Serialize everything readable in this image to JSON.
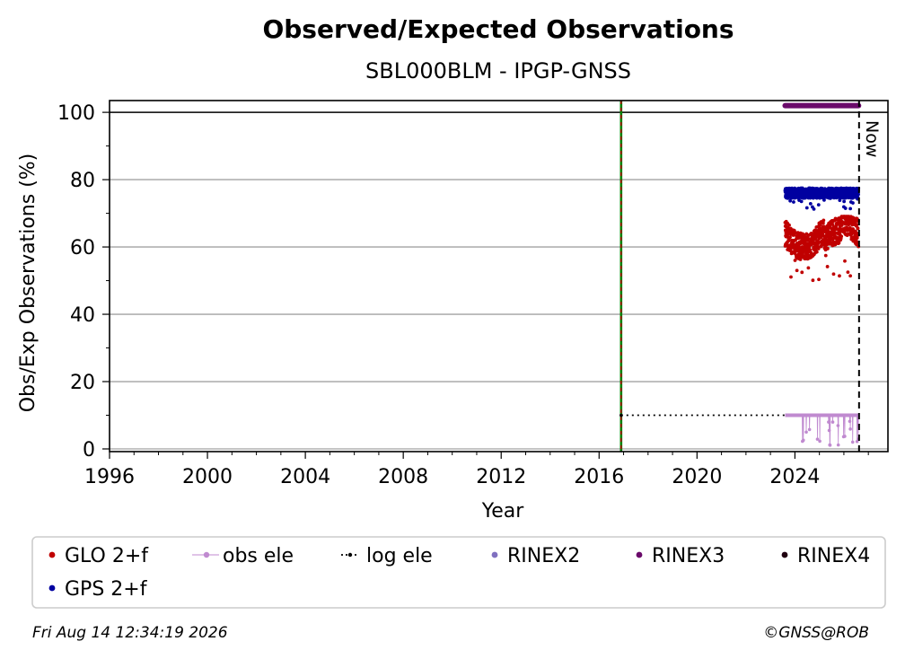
{
  "chart_data": {
    "type": "scatter",
    "title": "Observed/Expected Observations",
    "subtitle": "SBL000BLM - IPGP-GNSS",
    "xlabel": "Year",
    "ylabel": "Obs/Exp Observations (%)",
    "xlim": [
      1996,
      2027.8
    ],
    "ylim": [
      -0.8,
      103.5
    ],
    "x_ticks": [
      "1996",
      "2000",
      "2004",
      "2008",
      "2012",
      "2016",
      "2020",
      "2024"
    ],
    "y_ticks": [
      "0",
      "20",
      "40",
      "60",
      "80",
      "100"
    ],
    "grid": "horizontal",
    "reference_line_100": 100,
    "event_line_year": 2016.9,
    "now_year": 2026.62,
    "now_label": "Now",
    "legend_position": "below",
    "colors": {
      "GLO": "#c00000",
      "GPS": "#0000a0",
      "obs_ele": "#c08ad0",
      "log_ele": "#000000",
      "RINEX2": "#8070c0",
      "RINEX3": "#6a0a6a",
      "RINEX4": "#200010",
      "event_green": "#008000",
      "event_red": "#c00000"
    },
    "series": [
      {
        "name": "GLO 2+f",
        "kind": "points",
        "x_range": [
          2023.6,
          2026.6
        ],
        "y_range": [
          50,
          69
        ],
        "mean": 62
      },
      {
        "name": "GPS 2+f",
        "kind": "points",
        "x_range": [
          2023.6,
          2026.6
        ],
        "y_range": [
          71,
          79
        ],
        "mean": 76
      },
      {
        "name": "obs ele",
        "kind": "line-points",
        "x_range": [
          2023.6,
          2026.6
        ],
        "typical": 10,
        "min": 0
      },
      {
        "name": "log ele",
        "kind": "step",
        "x": [
          2016.9,
          2026.6
        ],
        "y": [
          10,
          10
        ]
      },
      {
        "name": "RINEX2",
        "kind": "band",
        "x": [],
        "y": 102
      },
      {
        "name": "RINEX3",
        "kind": "band",
        "x": [
          2023.6,
          2026.6
        ],
        "y": 102
      },
      {
        "name": "RINEX4",
        "kind": "band",
        "x": [],
        "y": 102
      }
    ]
  },
  "legend": [
    {
      "label": "GLO 2+f",
      "marker": "dot",
      "color": "#c00000"
    },
    {
      "label": "obs ele",
      "marker": "line-dot",
      "color": "#c08ad0"
    },
    {
      "label": "log ele",
      "marker": "dotted-dot",
      "color": "#000000"
    },
    {
      "label": "RINEX2",
      "marker": "dot",
      "color": "#8070c0"
    },
    {
      "label": "RINEX3",
      "marker": "dot",
      "color": "#6a0a6a"
    },
    {
      "label": "RINEX4",
      "marker": "dot",
      "color": "#200010"
    },
    {
      "label": "GPS 2+f",
      "marker": "dot",
      "color": "#0000a0"
    }
  ],
  "footer": {
    "timestamp": "Fri Aug 14 12:34:19 2026",
    "credit": "©GNSS@ROB"
  }
}
